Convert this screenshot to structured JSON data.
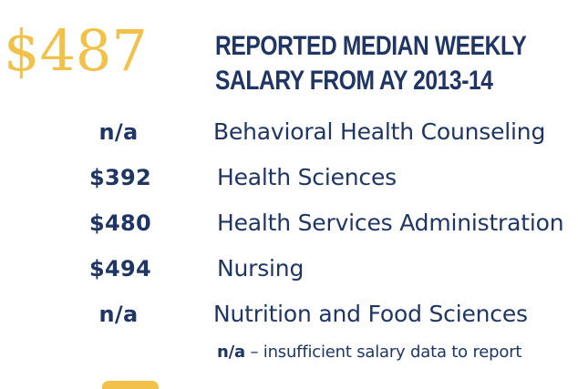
{
  "headline": {
    "amount": "$487",
    "title_line1": "REPORTED MEDIAN WEEKLY",
    "title_line2": "SALARY FROM AY 2013-14"
  },
  "programs": [
    {
      "value": "n/a",
      "name": "Behavioral Health Counseling"
    },
    {
      "value": "$392",
      "name": "Health Sciences"
    },
    {
      "value": "$480",
      "name": "Health Services Administration"
    },
    {
      "value": "$494",
      "name": "Nursing"
    },
    {
      "value": "n/a",
      "name": "Nutrition and Food Sciences"
    }
  ],
  "footnote": {
    "key": "n/a",
    "text": " – insufficient salary data to report"
  },
  "colors": {
    "gold": "#f2c14a",
    "navy": "#1f3563"
  }
}
